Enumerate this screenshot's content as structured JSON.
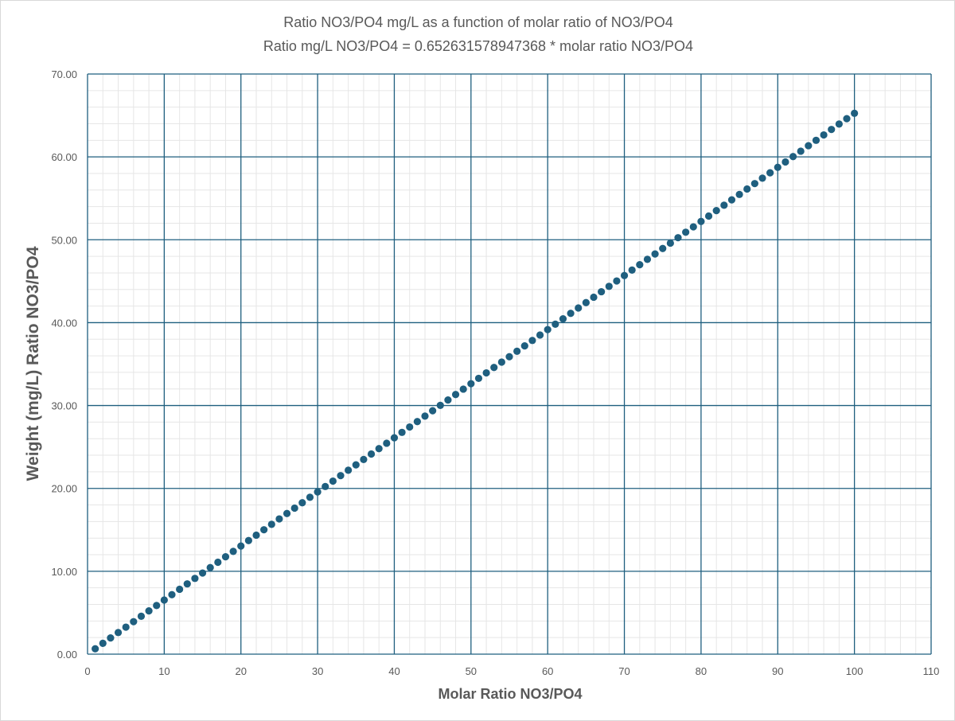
{
  "chart_data": {
    "type": "scatter",
    "title": "Ratio NO3/PO4 mg/L as a function of molar ratio of NO3/PO4",
    "subtitle": "Ratio mg/L NO3/PO4 = 0.652631578947368 * molar ratio NO3/PO4",
    "xlabel": "Molar Ratio NO3/PO4",
    "ylabel": "Weight (mg/L) Ratio NO3/PO4",
    "xlim": [
      0,
      110
    ],
    "ylim": [
      0,
      70
    ],
    "x_ticks": [
      "0",
      "10",
      "20",
      "30",
      "40",
      "50",
      "60",
      "70",
      "80",
      "90",
      "100",
      "110"
    ],
    "y_ticks": [
      "0.00",
      "10.00",
      "20.00",
      "30.00",
      "40.00",
      "50.00",
      "60.00",
      "70.00"
    ],
    "grid": true,
    "minor_grid": true,
    "legend": "none",
    "marker_color": "#1f5f7f",
    "major_grid_color": "#1f5f7f",
    "minor_grid_color": "#e6e6e6",
    "x": [
      1,
      2,
      3,
      4,
      5,
      6,
      7,
      8,
      9,
      10,
      11,
      12,
      13,
      14,
      15,
      16,
      17,
      18,
      19,
      20,
      21,
      22,
      23,
      24,
      25,
      26,
      27,
      28,
      29,
      30,
      31,
      32,
      33,
      34,
      35,
      36,
      37,
      38,
      39,
      40,
      41,
      42,
      43,
      44,
      45,
      46,
      47,
      48,
      49,
      50,
      51,
      52,
      53,
      54,
      55,
      56,
      57,
      58,
      59,
      60,
      61,
      62,
      63,
      64,
      65,
      66,
      67,
      68,
      69,
      70,
      71,
      72,
      73,
      74,
      75,
      76,
      77,
      78,
      79,
      80,
      81,
      82,
      83,
      84,
      85,
      86,
      87,
      88,
      89,
      90,
      91,
      92,
      93,
      94,
      95,
      96,
      97,
      98,
      99,
      100
    ],
    "y": [
      0.65,
      1.31,
      1.96,
      2.61,
      3.26,
      3.92,
      4.57,
      5.22,
      5.87,
      6.53,
      7.18,
      7.83,
      8.48,
      9.14,
      9.79,
      10.44,
      11.09,
      11.75,
      12.4,
      13.05,
      13.71,
      14.36,
      15.01,
      15.66,
      16.32,
      16.97,
      17.62,
      18.27,
      18.93,
      19.58,
      20.23,
      20.88,
      21.54,
      22.19,
      22.84,
      23.49,
      24.15,
      24.8,
      25.45,
      26.11,
      26.76,
      27.41,
      28.06,
      28.72,
      29.37,
      30.02,
      30.67,
      31.33,
      31.98,
      32.63,
      33.28,
      33.94,
      34.59,
      35.24,
      35.89,
      36.55,
      37.2,
      37.85,
      38.51,
      39.16,
      39.81,
      40.46,
      41.12,
      41.77,
      42.42,
      43.07,
      43.73,
      44.38,
      45.03,
      45.68,
      46.34,
      46.99,
      47.64,
      48.29,
      48.95,
      49.6,
      50.25,
      50.91,
      51.56,
      52.21,
      52.86,
      53.52,
      54.17,
      54.82,
      55.47,
      56.13,
      56.78,
      57.43,
      58.08,
      58.74,
      59.39,
      60.04,
      60.69,
      61.35,
      62.0,
      62.65,
      63.31,
      63.96,
      64.61,
      65.26
    ]
  }
}
